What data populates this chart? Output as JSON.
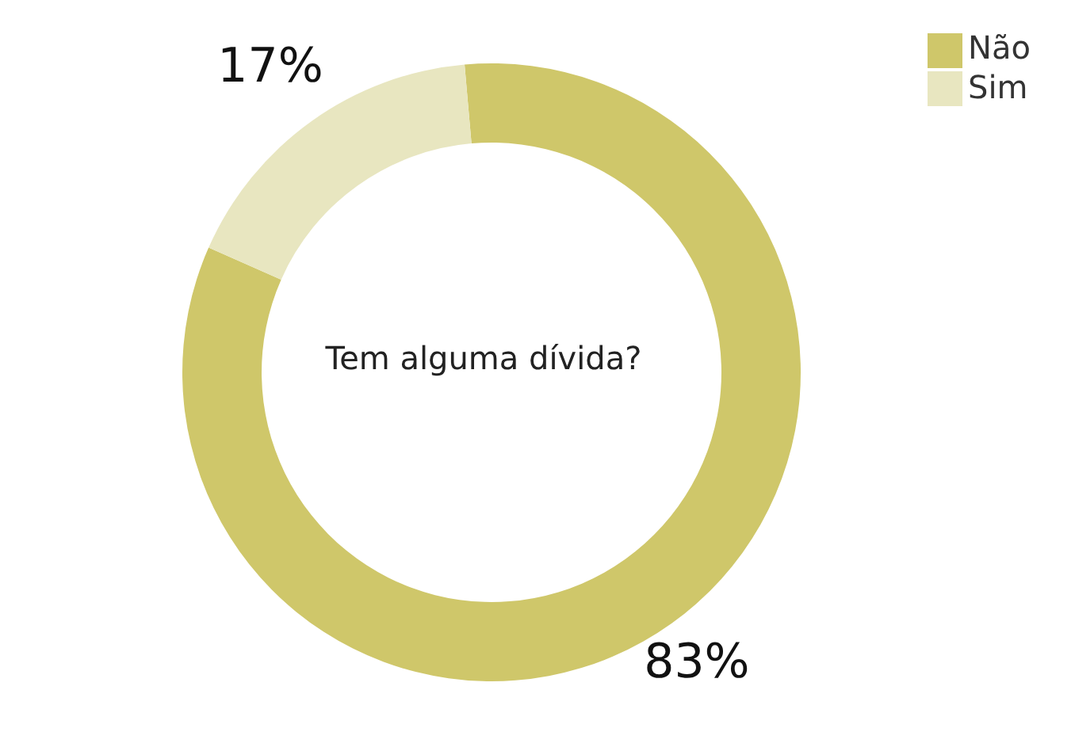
{
  "chart_data": {
    "type": "donut",
    "title": "Tem alguma dívida?",
    "categories": [
      "Não",
      "Sim"
    ],
    "values": [
      83,
      17
    ],
    "colors": [
      "#cfc76a",
      "#e8e6c0"
    ],
    "value_labels": [
      "83%",
      "17%"
    ],
    "legend": "top right"
  }
}
